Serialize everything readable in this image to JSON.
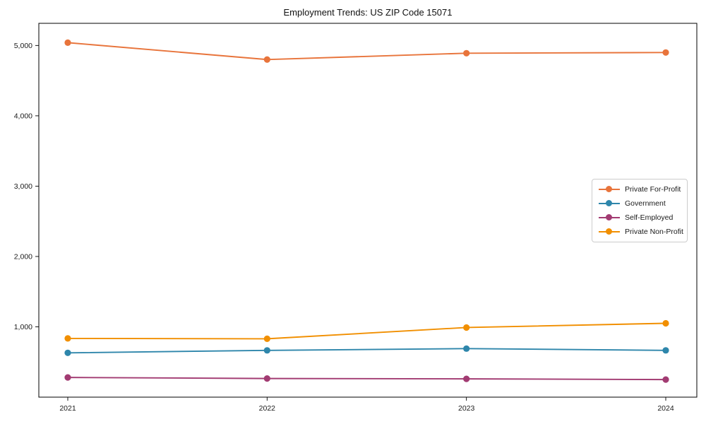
{
  "figure": {
    "title": "Employment Trends: US ZIP Code 15071"
  },
  "chart_data": {
    "type": "line",
    "title": "Employment Trends: US ZIP Code 15071",
    "xlabel": "",
    "ylabel": "",
    "categories": [
      "2021",
      "2022",
      "2023",
      "2024"
    ],
    "series": [
      {
        "name": "Private For-Profit",
        "color": "#E8743B",
        "values": [
          5040,
          4800,
          4890,
          4900
        ]
      },
      {
        "name": "Government",
        "color": "#2E86AB",
        "values": [
          630,
          665,
          690,
          665
        ]
      },
      {
        "name": "Self-Employed",
        "color": "#A23B72",
        "values": [
          280,
          265,
          260,
          250
        ]
      },
      {
        "name": "Private Non-Profit",
        "color": "#F18F01",
        "values": [
          835,
          830,
          990,
          1050
        ]
      }
    ],
    "ylim": [
      0,
      5315
    ],
    "yticks": [
      1000,
      2000,
      3000,
      4000,
      5000
    ],
    "ytick_labels": [
      "1,000",
      "2,000",
      "3,000",
      "4,000",
      "5,000"
    ],
    "grid": false,
    "legend_position": "center-right",
    "marker": "circle",
    "background": "#ffffff",
    "axis_color": "#000000",
    "tick_label_color": "#1a1a1a"
  }
}
